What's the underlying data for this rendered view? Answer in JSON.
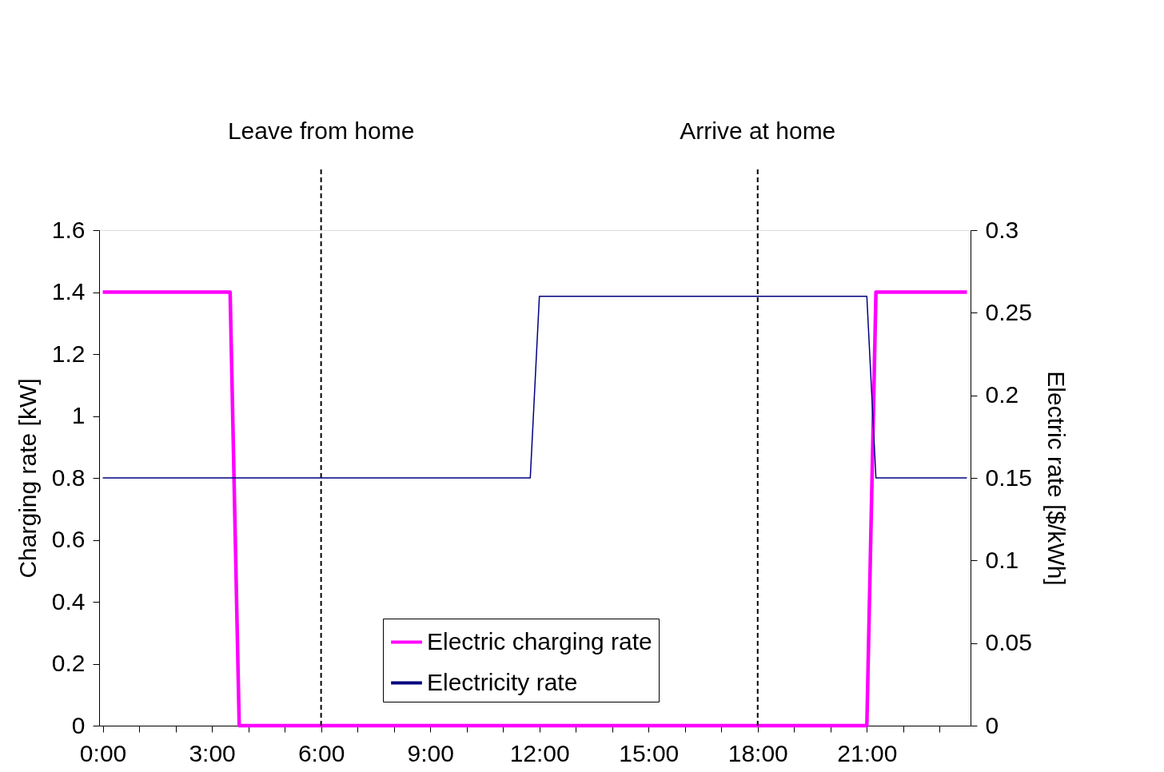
{
  "chart_data": {
    "type": "line",
    "ylabel": "Charging rate [kW]",
    "y2label": "Electric rate [$/kWh]",
    "xlim": [
      -0.1,
      23.85
    ],
    "xticks": [
      {
        "value": 0,
        "label": "0:00"
      },
      {
        "value": 1,
        "label": null
      },
      {
        "value": 2,
        "label": null
      },
      {
        "value": 3,
        "label": "3:00"
      },
      {
        "value": 4,
        "label": null
      },
      {
        "value": 5,
        "label": null
      },
      {
        "value": 6,
        "label": "6:00"
      },
      {
        "value": 7,
        "label": null
      },
      {
        "value": 8,
        "label": null
      },
      {
        "value": 9,
        "label": "9:00"
      },
      {
        "value": 10,
        "label": null
      },
      {
        "value": 11,
        "label": null
      },
      {
        "value": 12,
        "label": "12:00"
      },
      {
        "value": 13,
        "label": null
      },
      {
        "value": 14,
        "label": null
      },
      {
        "value": 15,
        "label": "15:00"
      },
      {
        "value": 16,
        "label": null
      },
      {
        "value": 17,
        "label": null
      },
      {
        "value": 18,
        "label": "18:00"
      },
      {
        "value": 19,
        "label": null
      },
      {
        "value": 20,
        "label": null
      },
      {
        "value": 21,
        "label": "21:00"
      },
      {
        "value": 22,
        "label": null
      },
      {
        "value": 23,
        "label": null
      }
    ],
    "ylim": [
      0,
      1.6
    ],
    "yticks": [
      0,
      0.2,
      0.4,
      0.6,
      0.8,
      1,
      1.2,
      1.4,
      1.6
    ],
    "y2lim": [
      0,
      0.3
    ],
    "y2ticks": [
      0,
      0.05,
      0.1,
      0.15,
      0.2,
      0.25,
      0.3
    ],
    "series": [
      {
        "name": "Electric charging rate",
        "color": "#ff00ff",
        "x": [
          0,
          3.5,
          3.75,
          21,
          21.25,
          23.75
        ],
        "values": [
          1.4,
          1.4,
          0,
          0,
          1.4,
          1.4
        ]
      },
      {
        "name": "Electricity rate",
        "color": "#000080",
        "axis": "y2",
        "x": [
          0,
          11.75,
          12,
          21,
          21.25,
          23.75
        ],
        "values": [
          0.15,
          0.15,
          0.26,
          0.26,
          0.15,
          0.15
        ]
      }
    ],
    "ref_lines": [
      {
        "axis": "x",
        "value": 6,
        "label": "Leave from home",
        "line_style": "dashed",
        "color": "#000000"
      },
      {
        "axis": "x",
        "value": 18,
        "label": "Arrive at home",
        "line_style": "dashed",
        "color": "#000000"
      }
    ],
    "legend": "bottom",
    "grid": false,
    "marker": "none",
    "line_style": "solid"
  }
}
